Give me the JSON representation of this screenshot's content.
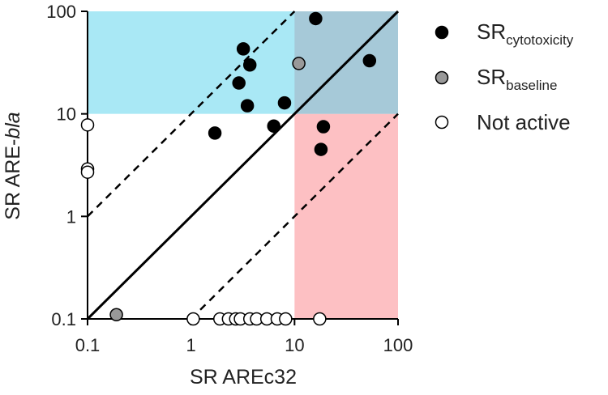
{
  "chart_data": {
    "type": "scatter",
    "xlabel": "SR AREc32",
    "ylabel": {
      "prefix": "SR ARE-",
      "italic": "bla"
    },
    "x_scale": "log",
    "y_scale": "log",
    "xlim": [
      0.1,
      100
    ],
    "ylim": [
      0.1,
      100
    ],
    "x_ticks": [
      "0.1",
      "1",
      "10",
      "100"
    ],
    "y_ticks": [
      "0.1",
      "1",
      "10",
      "100"
    ],
    "grid": false,
    "legend_position": "right",
    "regions": [
      {
        "id": "upper",
        "x": [
          0.1,
          100
        ],
        "y": [
          10,
          100
        ],
        "color": "#a9e8f5"
      },
      {
        "id": "lower-right",
        "x": [
          10,
          100
        ],
        "y": [
          0.1,
          10
        ],
        "color": "#fdc0c3"
      },
      {
        "id": "overlap",
        "x": [
          10,
          100
        ],
        "y": [
          10,
          100
        ],
        "color": "#a6c9d8"
      }
    ],
    "reference_lines": [
      {
        "id": "identity-line",
        "ratio": 1,
        "style": "solid"
      },
      {
        "id": "tenfold-upper-line",
        "ratio": 10,
        "style": "dashed"
      },
      {
        "id": "tenfold-lower-line",
        "ratio": 0.1,
        "style": "dashed"
      }
    ],
    "series": [
      {
        "label_main": "SR",
        "label_sub": "cytotoxicity",
        "color": "#000000",
        "points": [
          [
            1.7,
            6.5
          ],
          [
            2.9,
            20
          ],
          [
            3.2,
            43
          ],
          [
            3.7,
            30
          ],
          [
            3.5,
            12
          ],
          [
            6.3,
            7.6
          ],
          [
            8.0,
            12.8
          ],
          [
            16,
            85
          ],
          [
            18,
            4.5
          ],
          [
            19,
            7.5
          ],
          [
            53,
            33
          ]
        ]
      },
      {
        "label_main": "SR",
        "label_sub": "baseline",
        "color": "#999999",
        "points": [
          [
            0.19,
            0.11
          ],
          [
            11,
            31
          ]
        ]
      },
      {
        "label_main": "Not active",
        "label_sub": "",
        "color": "#ffffff",
        "points": [
          [
            0.1,
            7.8
          ],
          [
            0.1,
            2.9
          ],
          [
            0.1,
            2.7
          ],
          [
            1.05,
            0.1
          ],
          [
            1.9,
            0.1
          ],
          [
            2.3,
            0.1
          ],
          [
            2.7,
            0.1
          ],
          [
            3.0,
            0.1
          ],
          [
            3.7,
            0.1
          ],
          [
            4.3,
            0.1
          ],
          [
            5.4,
            0.1
          ],
          [
            6.8,
            0.1
          ],
          [
            8.2,
            0.1
          ],
          [
            17.5,
            0.1
          ]
        ]
      }
    ]
  }
}
